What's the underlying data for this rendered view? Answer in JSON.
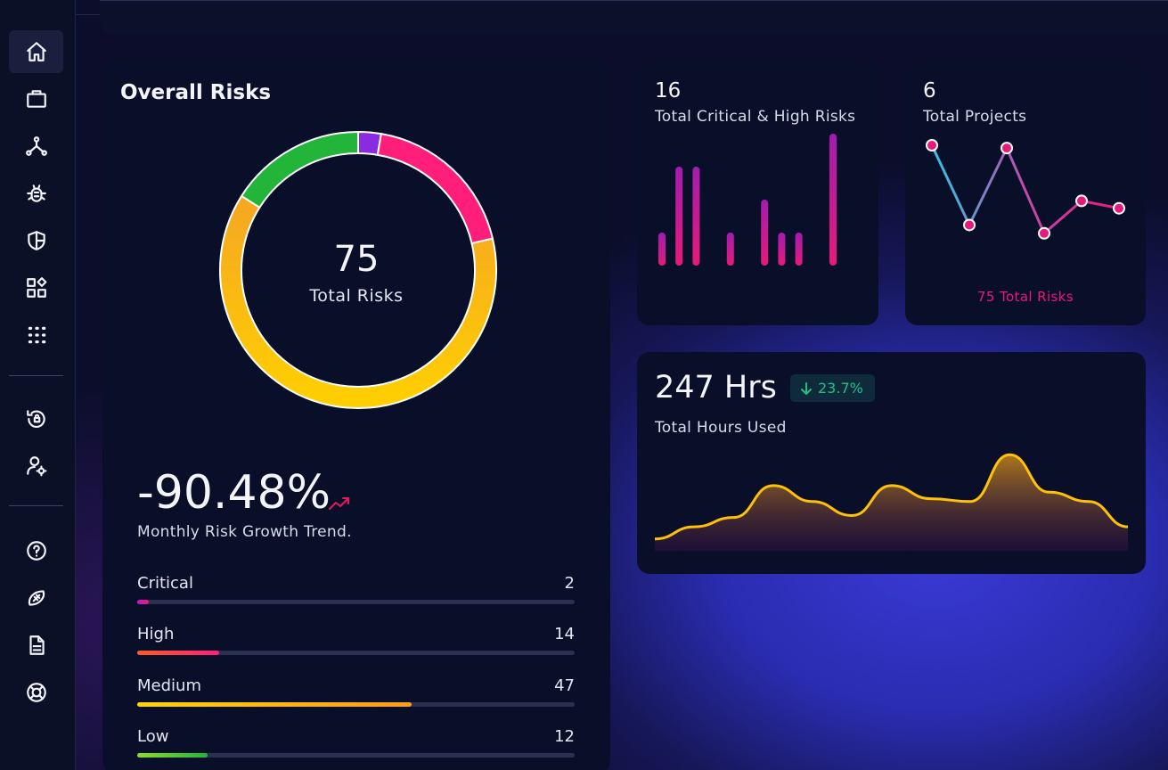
{
  "sidebar": {
    "items": [
      {
        "icon": "home-icon",
        "active": true
      },
      {
        "icon": "briefcase-icon"
      },
      {
        "icon": "network-icon"
      },
      {
        "icon": "bug-icon"
      },
      {
        "icon": "shield-icon"
      },
      {
        "icon": "widgets-icon"
      },
      {
        "icon": "apps-grid-icon"
      },
      {
        "icon": "history-lock-icon"
      },
      {
        "icon": "user-settings-icon"
      },
      {
        "icon": "help-icon"
      },
      {
        "icon": "football-icon"
      },
      {
        "icon": "document-icon"
      },
      {
        "icon": "support-icon"
      }
    ]
  },
  "overall_risks": {
    "title": "Overall Risks",
    "total": "75",
    "total_label": "Total Risks",
    "donut": [
      {
        "name": "Critical",
        "value": 2,
        "color": "#8a2be2"
      },
      {
        "name": "High",
        "value": 14,
        "color": "#ff1f7a"
      },
      {
        "name": "Medium",
        "value": 47,
        "color": "#ffc107"
      },
      {
        "name": "Low",
        "value": 12,
        "color": "#22b53a"
      }
    ],
    "trend_value": "-90.48%",
    "trend_label": "Monthly Risk Growth Trend.",
    "bars": [
      {
        "label": "Critical",
        "value": "2",
        "fraction": 0.027,
        "color_from": "#c318d0",
        "color_to": "#e8197a"
      },
      {
        "label": "High",
        "value": "14",
        "fraction": 0.187,
        "color_from": "#ff5a2a",
        "color_to": "#ff1f7a"
      },
      {
        "label": "Medium",
        "value": "47",
        "fraction": 0.627,
        "color_from": "#ffd400",
        "color_to": "#ff9a1a"
      },
      {
        "label": "Low",
        "value": "12",
        "fraction": 0.16,
        "color_from": "#8bdc2f",
        "color_to": "#22b53a"
      }
    ]
  },
  "critical_high": {
    "value": "16",
    "label": "Total Critical & High Risks",
    "bars": [
      0.25,
      0.75,
      0.75,
      0,
      0.25,
      0,
      0.5,
      0.25,
      0.25,
      0,
      1.0
    ]
  },
  "projects": {
    "value": "6",
    "label": "Total Projects",
    "footer": "75 Total Risks",
    "series": [
      0.0,
      0.86,
      0.03,
      0.95,
      0.6,
      0.68
    ]
  },
  "hours": {
    "value": "247 Hrs",
    "change": "23.7%",
    "label": "Total Hours Used",
    "series": [
      0.05,
      0.18,
      0.28,
      0.62,
      0.45,
      0.3,
      0.62,
      0.48,
      0.45,
      0.95,
      0.55,
      0.45,
      0.18
    ]
  },
  "colors": {
    "accent_pink": "#e8197a",
    "accent_green": "#22c087",
    "card_bg": "#0a0f29"
  }
}
